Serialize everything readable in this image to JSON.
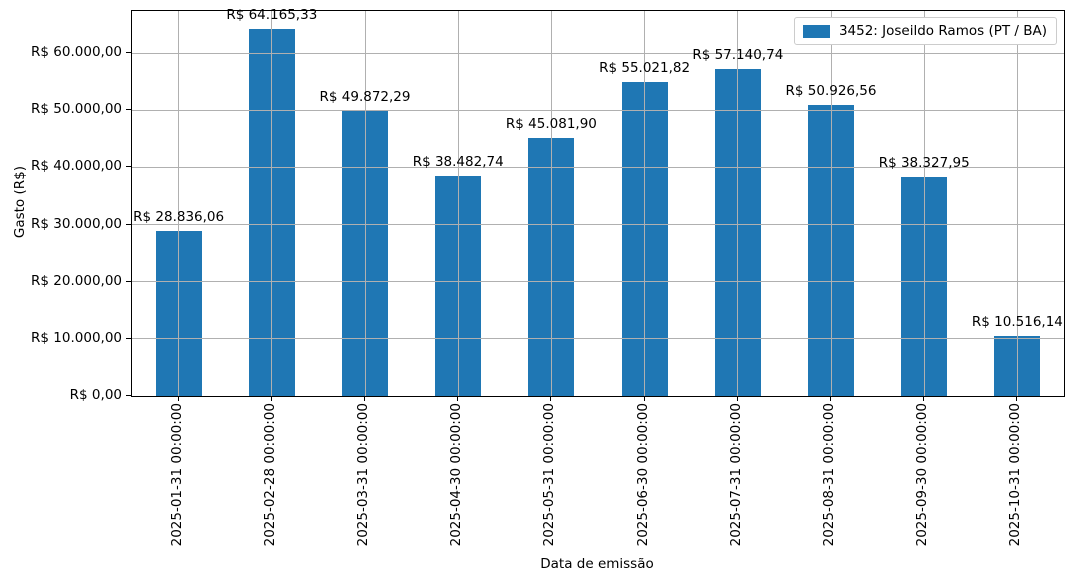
{
  "chart_data": {
    "type": "bar",
    "title": "",
    "xlabel": "Data de emissão",
    "ylabel": "Gasto (R$)",
    "categories": [
      "2025-01-31 00:00:00",
      "2025-02-28 00:00:00",
      "2025-03-31 00:00:00",
      "2025-04-30 00:00:00",
      "2025-05-31 00:00:00",
      "2025-06-30 00:00:00",
      "2025-07-31 00:00:00",
      "2025-08-31 00:00:00",
      "2025-09-30 00:00:00",
      "2025-10-31 00:00:00"
    ],
    "values": [
      28836.06,
      64165.33,
      49872.29,
      38482.74,
      45081.9,
      55021.82,
      57140.74,
      50926.56,
      38327.95,
      10516.14
    ],
    "bar_value_labels": [
      "R$ 28.836,06",
      "R$ 64.165,33",
      "R$ 49.872,29",
      "R$ 38.482,74",
      "R$ 45.081,90",
      "R$ 55.021,82",
      "R$ 57.140,74",
      "R$ 50.926,56",
      "R$ 38.327,95",
      "R$ 10.516,14"
    ],
    "ytick_values": [
      0,
      10000,
      20000,
      30000,
      40000,
      50000,
      60000
    ],
    "ytick_labels": [
      "R$ 0,00",
      "R$ 10.000,00",
      "R$ 20.000,00",
      "R$ 30.000,00",
      "R$ 40.000,00",
      "R$ 50.000,00",
      "R$ 60.000,00"
    ],
    "ylim": [
      0,
      67373.6
    ],
    "grid": true,
    "legend_position": "upper right",
    "legend": [
      "3452: Joseildo Ramos (PT / BA)"
    ],
    "bar_color": "#1f77b4",
    "grid_color": "#b0b0b0"
  }
}
